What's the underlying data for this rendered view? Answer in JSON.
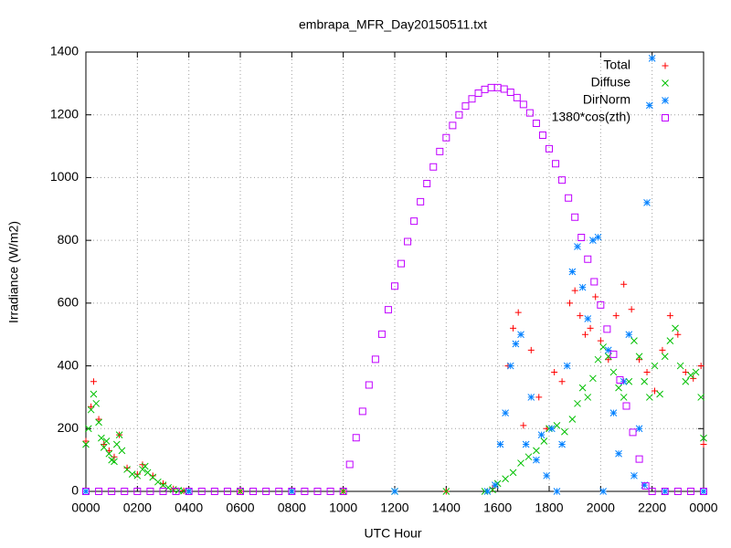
{
  "chart_data": {
    "type": "scatter",
    "title": "embrapa_MFR_Day20150511.txt",
    "x_label": "UTC Hour",
    "y_label": "Irradiance (W/m2)",
    "xlim": [
      0,
      24
    ],
    "ylim": [
      0,
      1400
    ],
    "xticks": [
      {
        "value": 0,
        "label": "0000"
      },
      {
        "value": 2,
        "label": "0200"
      },
      {
        "value": 4,
        "label": "0400"
      },
      {
        "value": 6,
        "label": "0600"
      },
      {
        "value": 8,
        "label": "0800"
      },
      {
        "value": 10,
        "label": "1000"
      },
      {
        "value": 12,
        "label": "1200"
      },
      {
        "value": 14,
        "label": "1400"
      },
      {
        "value": 16,
        "label": "1600"
      },
      {
        "value": 18,
        "label": "1800"
      },
      {
        "value": 20,
        "label": "2000"
      },
      {
        "value": 22,
        "label": "2200"
      },
      {
        "value": 24,
        "label": "0000"
      }
    ],
    "yticks": [
      0,
      200,
      400,
      600,
      800,
      1000,
      1200,
      1400
    ],
    "grid": true,
    "legend": "top-right",
    "series": [
      {
        "name": "Total",
        "color": "#ff0000",
        "marker": "plus",
        "x": [
          0,
          0.2,
          0.3,
          0.5,
          0.7,
          0.9,
          1.1,
          1.3,
          1.6,
          2.0,
          2.2,
          2.6,
          3.0,
          3.4,
          3.8,
          6,
          10,
          14,
          15.8,
          16.1,
          16.4,
          16.6,
          16.8,
          17.0,
          17.3,
          17.6,
          17.9,
          18.2,
          18.5,
          18.8,
          19.0,
          19.2,
          19.4,
          19.6,
          19.8,
          20.0,
          20.3,
          20.6,
          20.9,
          21.2,
          21.5,
          21.8,
          22.1,
          22.4,
          22.7,
          23.0,
          23.3,
          23.6,
          23.9,
          24
        ],
        "values": [
          160,
          270,
          350,
          230,
          150,
          130,
          110,
          180,
          75,
          55,
          85,
          50,
          25,
          8,
          2,
          0,
          0,
          0,
          10,
          150,
          400,
          520,
          570,
          210,
          450,
          300,
          200,
          380,
          350,
          600,
          640,
          560,
          500,
          520,
          620,
          480,
          420,
          560,
          660,
          580,
          420,
          380,
          320,
          450,
          560,
          500,
          380,
          360,
          400,
          150
        ]
      },
      {
        "name": "Diffuse",
        "color": "#00c000",
        "marker": "cross",
        "x": [
          0,
          0.1,
          0.2,
          0.3,
          0.4,
          0.5,
          0.6,
          0.7,
          0.8,
          0.9,
          1.0,
          1.1,
          1.2,
          1.3,
          1.4,
          1.6,
          1.8,
          2.0,
          2.2,
          2.3,
          2.4,
          2.6,
          2.8,
          3.0,
          3.2,
          3.4,
          3.6,
          3.8,
          4,
          6,
          8,
          10,
          12,
          14,
          15.5,
          15.8,
          16.0,
          16.3,
          16.6,
          16.9,
          17.2,
          17.5,
          17.8,
          18.0,
          18.3,
          18.6,
          18.9,
          19.1,
          19.3,
          19.5,
          19.7,
          19.9,
          20.1,
          20.3,
          20.5,
          20.7,
          20.9,
          21.1,
          21.3,
          21.5,
          21.7,
          21.9,
          22.1,
          22.3,
          22.5,
          22.7,
          22.9,
          23.1,
          23.3,
          23.5,
          23.7,
          23.9,
          24
        ],
        "values": [
          150,
          200,
          260,
          310,
          280,
          220,
          170,
          140,
          160,
          120,
          100,
          95,
          150,
          180,
          130,
          70,
          55,
          50,
          70,
          80,
          60,
          45,
          30,
          20,
          12,
          6,
          3,
          1,
          0,
          0,
          0,
          0,
          0,
          0,
          0,
          5,
          25,
          40,
          60,
          90,
          110,
          130,
          160,
          200,
          210,
          190,
          230,
          280,
          330,
          300,
          360,
          420,
          460,
          430,
          380,
          330,
          300,
          350,
          480,
          430,
          350,
          300,
          400,
          310,
          430,
          480,
          520,
          400,
          350,
          370,
          380,
          300,
          170
        ]
      },
      {
        "name": "DirNorm",
        "color": "#0080ff",
        "marker": "star",
        "x": [
          0,
          4,
          8,
          12,
          15.6,
          15.9,
          16.1,
          16.3,
          16.5,
          16.7,
          16.9,
          17.1,
          17.3,
          17.5,
          17.7,
          17.9,
          18.1,
          18.3,
          18.5,
          18.7,
          18.9,
          19.1,
          19.3,
          19.5,
          19.7,
          19.9,
          20.1,
          20.3,
          20.5,
          20.7,
          20.9,
          21.1,
          21.3,
          21.5,
          21.7,
          21.8,
          21.9,
          22.0,
          22.5,
          24
        ],
        "values": [
          0,
          0,
          0,
          0,
          0,
          20,
          150,
          250,
          400,
          470,
          500,
          150,
          300,
          100,
          180,
          50,
          200,
          0,
          150,
          400,
          700,
          780,
          650,
          550,
          800,
          810,
          0,
          450,
          250,
          120,
          350,
          500,
          50,
          200,
          20,
          920,
          1230,
          1380,
          0,
          0
        ]
      },
      {
        "name": "1380*cos(zth)",
        "color": "#c000ff",
        "marker": "square",
        "x": [
          0,
          0.5,
          1,
          1.5,
          2,
          2.5,
          3,
          3.5,
          4,
          4.5,
          5,
          5.5,
          6,
          6.5,
          7,
          7.5,
          8,
          8.5,
          9,
          9.5,
          10,
          10.25,
          10.5,
          10.75,
          11,
          11.25,
          11.5,
          11.75,
          12,
          12.25,
          12.5,
          12.75,
          13,
          13.25,
          13.5,
          13.75,
          14,
          14.25,
          14.5,
          14.75,
          15,
          15.25,
          15.5,
          15.75,
          16,
          16.25,
          16.5,
          16.75,
          17,
          17.25,
          17.5,
          17.75,
          18,
          18.25,
          18.5,
          18.75,
          19,
          19.25,
          19.5,
          19.75,
          20,
          20.25,
          20.5,
          20.75,
          21,
          21.25,
          21.5,
          21.75,
          22,
          22.5,
          23,
          23.5,
          24
        ],
        "values": [
          0,
          0,
          0,
          0,
          0,
          0,
          0,
          0,
          0,
          0,
          0,
          0,
          0,
          0,
          0,
          0,
          0,
          0,
          0,
          0,
          0,
          86,
          171,
          255,
          339,
          421,
          501,
          579,
          654,
          726,
          796,
          861,
          923,
          981,
          1034,
          1083,
          1127,
          1166,
          1200,
          1228,
          1251,
          1269,
          1281,
          1287,
          1287,
          1282,
          1272,
          1255,
          1233,
          1206,
          1173,
          1135,
          1092,
          1044,
          992,
          935,
          874,
          809,
          740,
          668,
          594,
          517,
          437,
          355,
          272,
          188,
          103,
          17,
          0,
          0,
          0,
          0,
          0
        ]
      }
    ]
  }
}
